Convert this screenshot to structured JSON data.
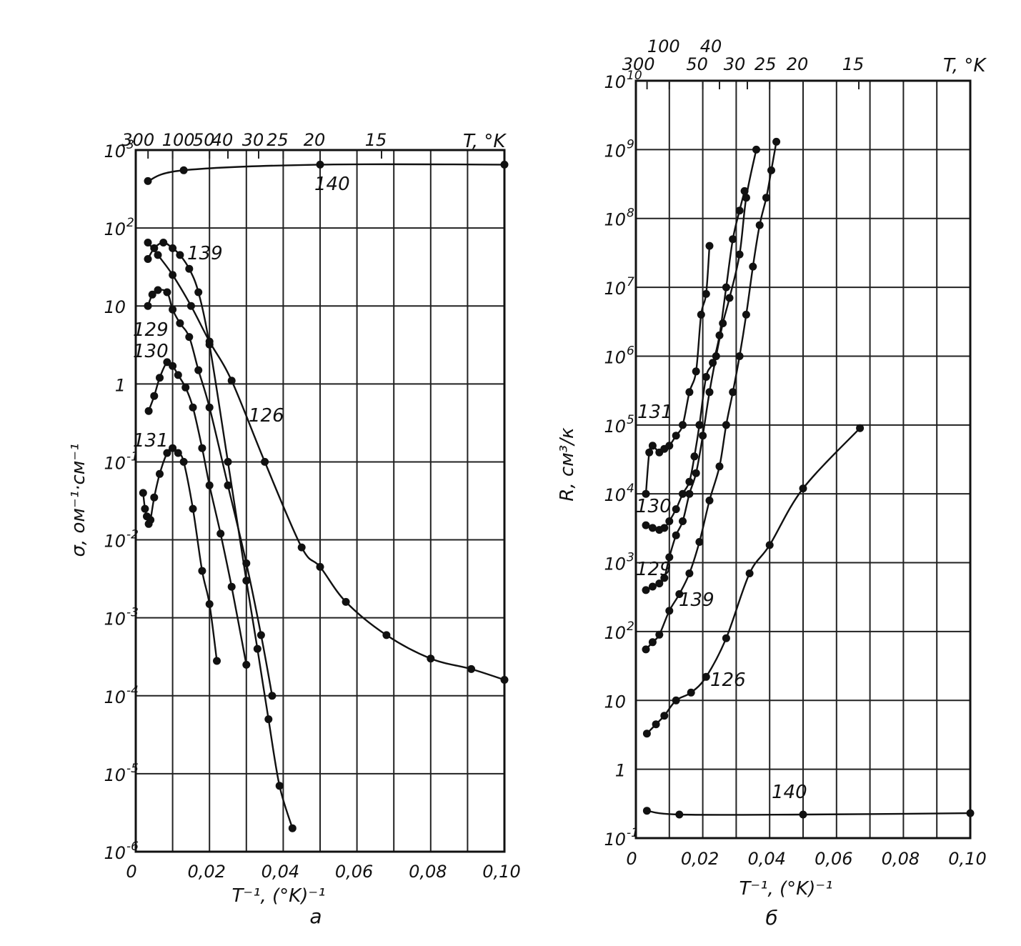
{
  "chart_data": [
    {
      "type": "scatter",
      "panel_label": "а",
      "xlabel": "T⁻¹, (°K)⁻¹",
      "ylabel": "σ, ом⁻¹·см⁻¹",
      "y_scale": "log",
      "xlim": [
        0,
        0.1
      ],
      "ylim": [
        1e-06,
        1000
      ],
      "x_ticks": [
        {
          "value": 0,
          "label": "0"
        },
        {
          "value": 0.02,
          "label": "0,02"
        },
        {
          "value": 0.04,
          "label": "0,04"
        },
        {
          "value": 0.06,
          "label": "0,06"
        },
        {
          "value": 0.08,
          "label": "0,08"
        },
        {
          "value": 0.1,
          "label": "0,10"
        }
      ],
      "y_ticks": [
        {
          "value": 1000,
          "base": "10",
          "exp": "3"
        },
        {
          "value": 100,
          "base": "10",
          "exp": "2"
        },
        {
          "value": 10,
          "base": "10",
          "exp": ""
        },
        {
          "value": 1,
          "base": "1",
          "exp": ""
        },
        {
          "value": 0.1,
          "base": "10",
          "exp": "-1"
        },
        {
          "value": 0.01,
          "base": "10",
          "exp": "-2"
        },
        {
          "value": 0.001,
          "base": "10",
          "exp": "-3"
        },
        {
          "value": 0.0001,
          "base": "10",
          "exp": "-4"
        },
        {
          "value": 1e-05,
          "base": "10",
          "exp": "-5"
        },
        {
          "value": 1e-06,
          "base": "10",
          "exp": "-6"
        }
      ],
      "top_axis_label": "T, °K",
      "top_ticks": [
        {
          "T": 300,
          "label": "300"
        },
        {
          "T": 100,
          "label": "100"
        },
        {
          "T": 50,
          "label": "50"
        },
        {
          "T": 40,
          "label": "40"
        },
        {
          "T": 30,
          "label": "30"
        },
        {
          "T": 25,
          "label": "25"
        },
        {
          "T": 20,
          "label": "20"
        },
        {
          "T": 15,
          "label": "15"
        }
      ],
      "grid": true,
      "series": [
        {
          "name": "140",
          "x": [
            0.0033,
            0.013,
            0.05,
            0.1
          ],
          "y": [
            400,
            550,
            650,
            650
          ]
        },
        {
          "name": "139",
          "x": [
            0.0033,
            0.005,
            0.0075,
            0.01,
            0.012,
            0.0145,
            0.017,
            0.02,
            0.025,
            0.03,
            0.033,
            0.036,
            0.039,
            0.0425
          ],
          "y": [
            40,
            55,
            65,
            55,
            45,
            30,
            15,
            3.2,
            0.1,
            0.003,
            0.0004,
            5e-05,
            7e-06,
            2e-06
          ]
        },
        {
          "name": "126",
          "x": [
            0.0033,
            0.006,
            0.01,
            0.015,
            0.02,
            0.026,
            0.035,
            0.045,
            0.05,
            0.057,
            0.068,
            0.08,
            0.091,
            0.1
          ],
          "y": [
            65,
            45,
            25,
            10,
            3.5,
            1.1,
            0.1,
            0.008,
            0.0045,
            0.0016,
            0.0006,
            0.0003,
            0.00022,
            0.00016
          ]
        },
        {
          "name": "129",
          "x": [
            0.0033,
            0.0045,
            0.006,
            0.0085,
            0.01,
            0.012,
            0.0145,
            0.017,
            0.02,
            0.025,
            0.03,
            0.034,
            0.037
          ],
          "y": [
            10,
            14,
            16,
            15,
            9,
            6,
            4,
            1.5,
            0.5,
            0.05,
            0.005,
            0.0006,
            0.0001
          ]
        },
        {
          "name": "130",
          "x": [
            0.0035,
            0.005,
            0.0065,
            0.0085,
            0.01,
            0.0115,
            0.0135,
            0.0155,
            0.018,
            0.02,
            0.023,
            0.026,
            0.03
          ],
          "y": [
            0.45,
            0.7,
            1.2,
            1.9,
            1.7,
            1.3,
            0.9,
            0.5,
            0.15,
            0.05,
            0.012,
            0.0025,
            0.00025
          ]
        },
        {
          "name": "131",
          "x": [
            0.002,
            0.0025,
            0.003,
            0.0035,
            0.004,
            0.005,
            0.0065,
            0.0085,
            0.01,
            0.0115,
            0.013,
            0.0155,
            0.018,
            0.02,
            0.022
          ],
          "y": [
            0.04,
            0.025,
            0.02,
            0.016,
            0.018,
            0.035,
            0.07,
            0.13,
            0.15,
            0.13,
            0.1,
            0.025,
            0.004,
            0.0015,
            0.00028
          ]
        }
      ],
      "annotations": [
        "140",
        "139",
        "129",
        "130",
        "131",
        "126"
      ]
    },
    {
      "type": "scatter",
      "panel_label": "б",
      "xlabel": "T⁻¹, (°K)⁻¹",
      "ylabel": "R, см³/к",
      "y_scale": "log",
      "xlim": [
        0,
        0.1
      ],
      "ylim": [
        0.1,
        10000000000.0
      ],
      "x_ticks": [
        {
          "value": 0,
          "label": "0"
        },
        {
          "value": 0.02,
          "label": "0,02"
        },
        {
          "value": 0.04,
          "label": "0,04"
        },
        {
          "value": 0.06,
          "label": "0,06"
        },
        {
          "value": 0.08,
          "label": "0,08"
        },
        {
          "value": 0.1,
          "label": "0,10"
        }
      ],
      "y_ticks": [
        {
          "value": 10000000000.0,
          "base": "10",
          "exp": "10"
        },
        {
          "value": 1000000000.0,
          "base": "10",
          "exp": "9"
        },
        {
          "value": 100000000.0,
          "base": "10",
          "exp": "8"
        },
        {
          "value": 10000000.0,
          "base": "10",
          "exp": "7"
        },
        {
          "value": 1000000.0,
          "base": "10",
          "exp": "6"
        },
        {
          "value": 100000.0,
          "base": "10",
          "exp": "5"
        },
        {
          "value": 10000.0,
          "base": "10",
          "exp": "4"
        },
        {
          "value": 1000.0,
          "base": "10",
          "exp": "3"
        },
        {
          "value": 100,
          "base": "10",
          "exp": "2"
        },
        {
          "value": 10,
          "base": "10",
          "exp": ""
        },
        {
          "value": 1,
          "base": "1",
          "exp": ""
        },
        {
          "value": 0.1,
          "base": "10",
          "exp": "-1"
        }
      ],
      "top_axis_label": "T, °K",
      "top_ticks": [
        {
          "T": 300,
          "label": "300"
        },
        {
          "T": 100,
          "label": "100"
        },
        {
          "T": 50,
          "label": "50"
        },
        {
          "T": 40,
          "label": "40"
        },
        {
          "T": 30,
          "label": "30"
        },
        {
          "T": 25,
          "label": "25"
        },
        {
          "T": 20,
          "label": "20"
        },
        {
          "T": 15,
          "label": "15"
        }
      ],
      "grid": true,
      "series": [
        {
          "name": "140",
          "x": [
            0.0033,
            0.013,
            0.05,
            0.1
          ],
          "y": [
            0.25,
            0.22,
            0.22,
            0.23
          ]
        },
        {
          "name": "126",
          "x": [
            0.0033,
            0.006,
            0.0085,
            0.012,
            0.0165,
            0.021,
            0.027,
            0.034,
            0.04,
            0.05,
            0.067
          ],
          "y": [
            3.3,
            4.5,
            6,
            10,
            13,
            22,
            80,
            700,
            1800,
            12000,
            90000
          ]
        },
        {
          "name": "139",
          "x": [
            0.003,
            0.005,
            0.007,
            0.01,
            0.013,
            0.016,
            0.019,
            0.022,
            0.025,
            0.027,
            0.029,
            0.031,
            0.033,
            0.035,
            0.037,
            0.039,
            0.0405,
            0.042
          ],
          "y": [
            55,
            70,
            90,
            200,
            350,
            700,
            2000,
            8000,
            25000,
            100000,
            300000,
            1000000,
            4000000,
            20000000,
            80000000,
            200000000,
            500000000,
            1300000000
          ]
        },
        {
          "name": "129",
          "x": [
            0.003,
            0.005,
            0.007,
            0.0085,
            0.01,
            0.012,
            0.014,
            0.016,
            0.018,
            0.02,
            0.022,
            0.024,
            0.026,
            0.028,
            0.031,
            0.033,
            0.036
          ],
          "y": [
            400,
            450,
            500,
            600,
            1200,
            2500,
            4000,
            10000,
            20000,
            70000,
            300000,
            1000000,
            3000000,
            7000000,
            30000000,
            200000000,
            1000000000
          ]
        },
        {
          "name": "130",
          "x": [
            0.003,
            0.005,
            0.007,
            0.0085,
            0.01,
            0.012,
            0.014,
            0.016,
            0.0175,
            0.019,
            0.021,
            0.023,
            0.025,
            0.027,
            0.029,
            0.031,
            0.0325
          ],
          "y": [
            3500,
            3200,
            3000,
            3200,
            4000,
            6000,
            10000,
            15000,
            35000,
            100000,
            500000,
            800000,
            2000000,
            10000000,
            50000000,
            130000000,
            250000000
          ]
        },
        {
          "name": "131",
          "x": [
            0.003,
            0.004,
            0.005,
            0.007,
            0.0085,
            0.01,
            0.012,
            0.014,
            0.016,
            0.018,
            0.0195,
            0.021,
            0.022
          ],
          "y": [
            10000,
            40000,
            50000,
            40000,
            45000,
            50000,
            70000,
            100000,
            300000,
            600000,
            4000000,
            8000000,
            40000000
          ]
        }
      ],
      "annotations": [
        "131",
        "130",
        "129",
        "139",
        "126",
        "140"
      ]
    }
  ]
}
